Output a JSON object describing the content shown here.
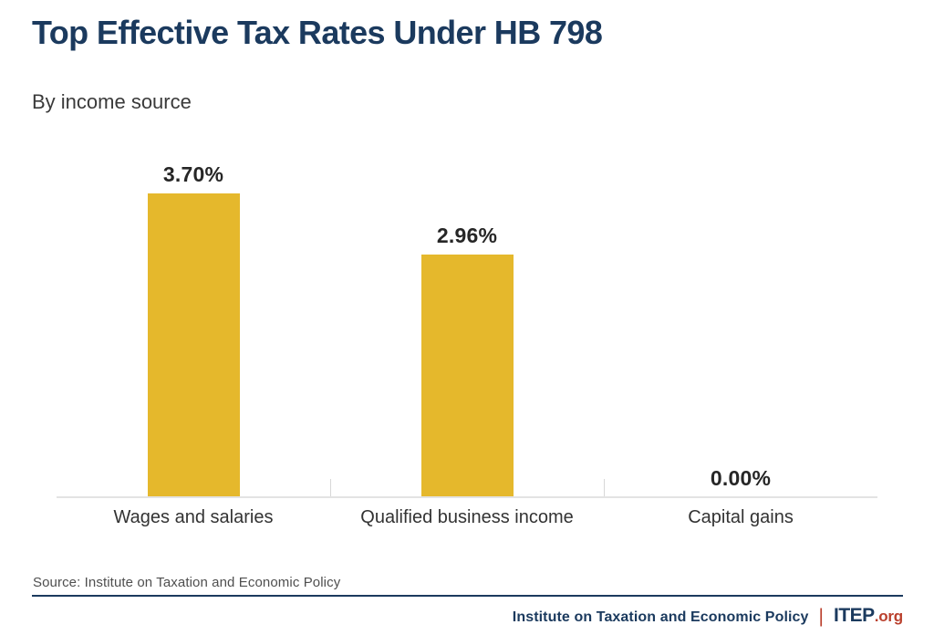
{
  "header": {
    "title": "Top Effective Tax Rates Under HB 798",
    "subtitle": "By income source"
  },
  "chart_data": {
    "type": "bar",
    "title": "Top Effective Tax Rates Under HB 798",
    "subtitle": "By income source",
    "categories": [
      "Wages and salaries",
      "Qualified business income",
      "Capital gains"
    ],
    "values": [
      3.7,
      2.96,
      0.0
    ],
    "value_labels": [
      "3.70%",
      "2.96%",
      "0.00%"
    ],
    "xlabel": "",
    "ylabel": "",
    "ylim": [
      0,
      3.7
    ],
    "grid": "off",
    "legend": "none",
    "bar_color_hex": "#E5B82C"
  },
  "footer": {
    "source_note": "Source: Institute on Taxation and Economic Policy",
    "org_name": "Institute on Taxation and Economic Policy",
    "separator": "|",
    "logo_primary": "ITEP",
    "logo_suffix": ".org"
  },
  "colors": {
    "navy": "#1B3A5E",
    "gold": "#E5B82C",
    "red": "#BA402D",
    "axis_gray": "#E3E3E3"
  }
}
